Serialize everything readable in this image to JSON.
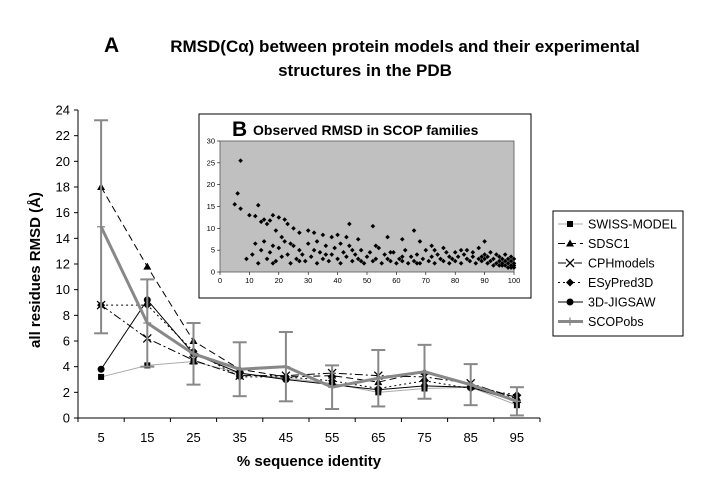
{
  "figure": {
    "panel_a_letter": "A",
    "title_line1": "RMSD(Cα) between protein models and their experimental",
    "title_line2": "structures in the PDB",
    "panel_b_letter": "B",
    "inset_title": "Observed RMSD in SCOP families"
  },
  "chart_data": [
    {
      "type": "line",
      "panel": "A",
      "xlabel": "% sequence identity",
      "ylabel": "all residues RMSD (Å)",
      "categories": [
        "5",
        "15",
        "25",
        "35",
        "45",
        "55",
        "65",
        "75",
        "85",
        "95"
      ],
      "ylim": [
        0,
        24
      ],
      "yticks": [
        0,
        2,
        4,
        6,
        8,
        10,
        12,
        14,
        16,
        18,
        20,
        22,
        24
      ],
      "grid": false,
      "legend": "right",
      "series": [
        {
          "name": "SWISS-MODEL",
          "color": "#aaaaaa",
          "dash": "solid",
          "marker": "square",
          "values": [
            3.2,
            4.1,
            4.4,
            3.5,
            3.1,
            2.7,
            2.0,
            2.3,
            2.4,
            1.0
          ]
        },
        {
          "name": "SDSC1",
          "color": "#000000",
          "dash": "dashed",
          "marker": "triangle",
          "values": [
            18.0,
            11.8,
            6.0,
            3.8,
            3.2,
            3.3,
            2.8,
            3.6,
            2.6,
            1.6
          ]
        },
        {
          "name": "CPHmodels",
          "color": "#000000",
          "dash": "dashdot",
          "marker": "x",
          "values": [
            8.8,
            6.2,
            4.5,
            3.3,
            3.3,
            3.5,
            3.3,
            3.2,
            2.7,
            1.5
          ]
        },
        {
          "name": "ESyPred3D",
          "color": "#000000",
          "dash": "dotted",
          "marker": "diamond",
          "values": [
            8.8,
            8.8,
            5.2,
            3.2,
            3.2,
            2.9,
            2.3,
            2.9,
            2.3,
            1.8
          ]
        },
        {
          "name": "3D-JIGSAW",
          "color": "#000000",
          "dash": "solid",
          "marker": "circle",
          "values": [
            3.8,
            9.2,
            5.0,
            3.5,
            3.0,
            2.6,
            2.2,
            2.5,
            2.4,
            1.3
          ]
        },
        {
          "name": "SCOPobs",
          "color": "#888888",
          "dash": "solid",
          "marker": "plus",
          "width": 3,
          "values": [
            14.9,
            7.4,
            5.0,
            3.8,
            4.0,
            2.4,
            3.1,
            3.6,
            2.6,
            1.3
          ],
          "error": [
            8.3,
            3.4,
            2.4,
            2.1,
            2.7,
            1.7,
            2.2,
            2.1,
            1.6,
            1.1
          ]
        }
      ]
    },
    {
      "type": "scatter",
      "panel": "B",
      "title": "Observed RMSD in SCOP families",
      "xlim": [
        0,
        100
      ],
      "ylim": [
        0,
        30
      ],
      "xticks": [
        0,
        10,
        20,
        30,
        40,
        50,
        60,
        70,
        80,
        90,
        100
      ],
      "yticks": [
        0,
        5,
        10,
        15,
        20,
        25,
        30
      ],
      "grid": false,
      "marker": "diamond",
      "background": "#c0c0c0",
      "points": [
        [
          7,
          25.5
        ],
        [
          6,
          18
        ],
        [
          5,
          15.5
        ],
        [
          7,
          14.5
        ],
        [
          10,
          13
        ],
        [
          12,
          12.8
        ],
        [
          13,
          15.3
        ],
        [
          15,
          12
        ],
        [
          14,
          11.5
        ],
        [
          17,
          11.8
        ],
        [
          16,
          11
        ],
        [
          18,
          13
        ],
        [
          20,
          12.5
        ],
        [
          22,
          12
        ],
        [
          19,
          9.5
        ],
        [
          23,
          11
        ],
        [
          25,
          10
        ],
        [
          27,
          9
        ],
        [
          30,
          9.5
        ],
        [
          32,
          9
        ],
        [
          35,
          8.5
        ],
        [
          38,
          8
        ],
        [
          40,
          8.5
        ],
        [
          43,
          8
        ],
        [
          47,
          7.5
        ],
        [
          52,
          10.5
        ],
        [
          44,
          11
        ],
        [
          66,
          9.5
        ],
        [
          57,
          8
        ],
        [
          62,
          7.5
        ],
        [
          68,
          7
        ],
        [
          72,
          6
        ],
        [
          76,
          5.5
        ],
        [
          80,
          4.5
        ],
        [
          84,
          5
        ],
        [
          88,
          5.5
        ],
        [
          90,
          7
        ],
        [
          9,
          3
        ],
        [
          11,
          4
        ],
        [
          12,
          6.5
        ],
        [
          13,
          2
        ],
        [
          14,
          5
        ],
        [
          15,
          7
        ],
        [
          16,
          3
        ],
        [
          17,
          4.5
        ],
        [
          18,
          6
        ],
        [
          19,
          2.5
        ],
        [
          20,
          5.5
        ],
        [
          21,
          3.5
        ],
        [
          22,
          7
        ],
        [
          23,
          4
        ],
        [
          24,
          2
        ],
        [
          25,
          6
        ],
        [
          26,
          3
        ],
        [
          27,
          5
        ],
        [
          28,
          4
        ],
        [
          29,
          2.5
        ],
        [
          30,
          6.5
        ],
        [
          31,
          3.5
        ],
        [
          32,
          5
        ],
        [
          33,
          2
        ],
        [
          34,
          4.5
        ],
        [
          35,
          3
        ],
        [
          36,
          6
        ],
        [
          37,
          2.5
        ],
        [
          38,
          4
        ],
        [
          39,
          5.5
        ],
        [
          40,
          3
        ],
        [
          41,
          2
        ],
        [
          42,
          4.5
        ],
        [
          43,
          3.5
        ],
        [
          44,
          6
        ],
        [
          45,
          2.5
        ],
        [
          46,
          4
        ],
        [
          47,
          3
        ],
        [
          48,
          5
        ],
        [
          49,
          2
        ],
        [
          50,
          3.5
        ],
        [
          51,
          4.5
        ],
        [
          52,
          2.5
        ],
        [
          53,
          3
        ],
        [
          54,
          5.5
        ],
        [
          55,
          2
        ],
        [
          56,
          4
        ],
        [
          57,
          3
        ],
        [
          58,
          2.5
        ],
        [
          59,
          4.5
        ],
        [
          60,
          2
        ],
        [
          61,
          3
        ],
        [
          62,
          2.5
        ],
        [
          63,
          5
        ],
        [
          64,
          2
        ],
        [
          65,
          3.5
        ],
        [
          66,
          2.5
        ],
        [
          67,
          4
        ],
        [
          68,
          2
        ],
        [
          69,
          3
        ],
        [
          70,
          5
        ],
        [
          71,
          2.5
        ],
        [
          72,
          3.5
        ],
        [
          73,
          2
        ],
        [
          74,
          4
        ],
        [
          75,
          3
        ],
        [
          76,
          2.5
        ],
        [
          77,
          4.5
        ],
        [
          78,
          2
        ],
        [
          79,
          3
        ],
        [
          80,
          2.5
        ],
        [
          81,
          3.5
        ],
        [
          82,
          2
        ],
        [
          83,
          4
        ],
        [
          84,
          3
        ],
        [
          85,
          2.5
        ],
        [
          86,
          3.5
        ],
        [
          87,
          2
        ],
        [
          88,
          3
        ],
        [
          89,
          2.5
        ],
        [
          90,
          4
        ],
        [
          90,
          3
        ],
        [
          91,
          2
        ],
        [
          91,
          3.5
        ],
        [
          92,
          2.5
        ],
        [
          92,
          4.5
        ],
        [
          93,
          1.5
        ],
        [
          93,
          3
        ],
        [
          94,
          2
        ],
        [
          94,
          4
        ],
        [
          95,
          1.5
        ],
        [
          95,
          2.5
        ],
        [
          95,
          3.5
        ],
        [
          96,
          1.5
        ],
        [
          96,
          2
        ],
        [
          96,
          3
        ],
        [
          97,
          1.5
        ],
        [
          97,
          2.5
        ],
        [
          97,
          4
        ],
        [
          98,
          1
        ],
        [
          98,
          2
        ],
        [
          98,
          3
        ],
        [
          99,
          1.5
        ],
        [
          99,
          2.5
        ],
        [
          99,
          1
        ],
        [
          100,
          2
        ],
        [
          100,
          1.5
        ],
        [
          100,
          3
        ],
        [
          100,
          1
        ],
        [
          99,
          3.5
        ],
        [
          18,
          2
        ],
        [
          21,
          8
        ],
        [
          24,
          6.5
        ],
        [
          27,
          2.5
        ],
        [
          33,
          7
        ],
        [
          36,
          4
        ],
        [
          41,
          6.5
        ],
        [
          45,
          5
        ],
        [
          48,
          2.5
        ],
        [
          53,
          6
        ],
        [
          58,
          4.5
        ],
        [
          62,
          3.5
        ],
        [
          67,
          2
        ],
        [
          73,
          5
        ],
        [
          78,
          3.5
        ],
        [
          82,
          5
        ],
        [
          86,
          4.5
        ],
        [
          89,
          3.5
        ]
      ]
    }
  ]
}
